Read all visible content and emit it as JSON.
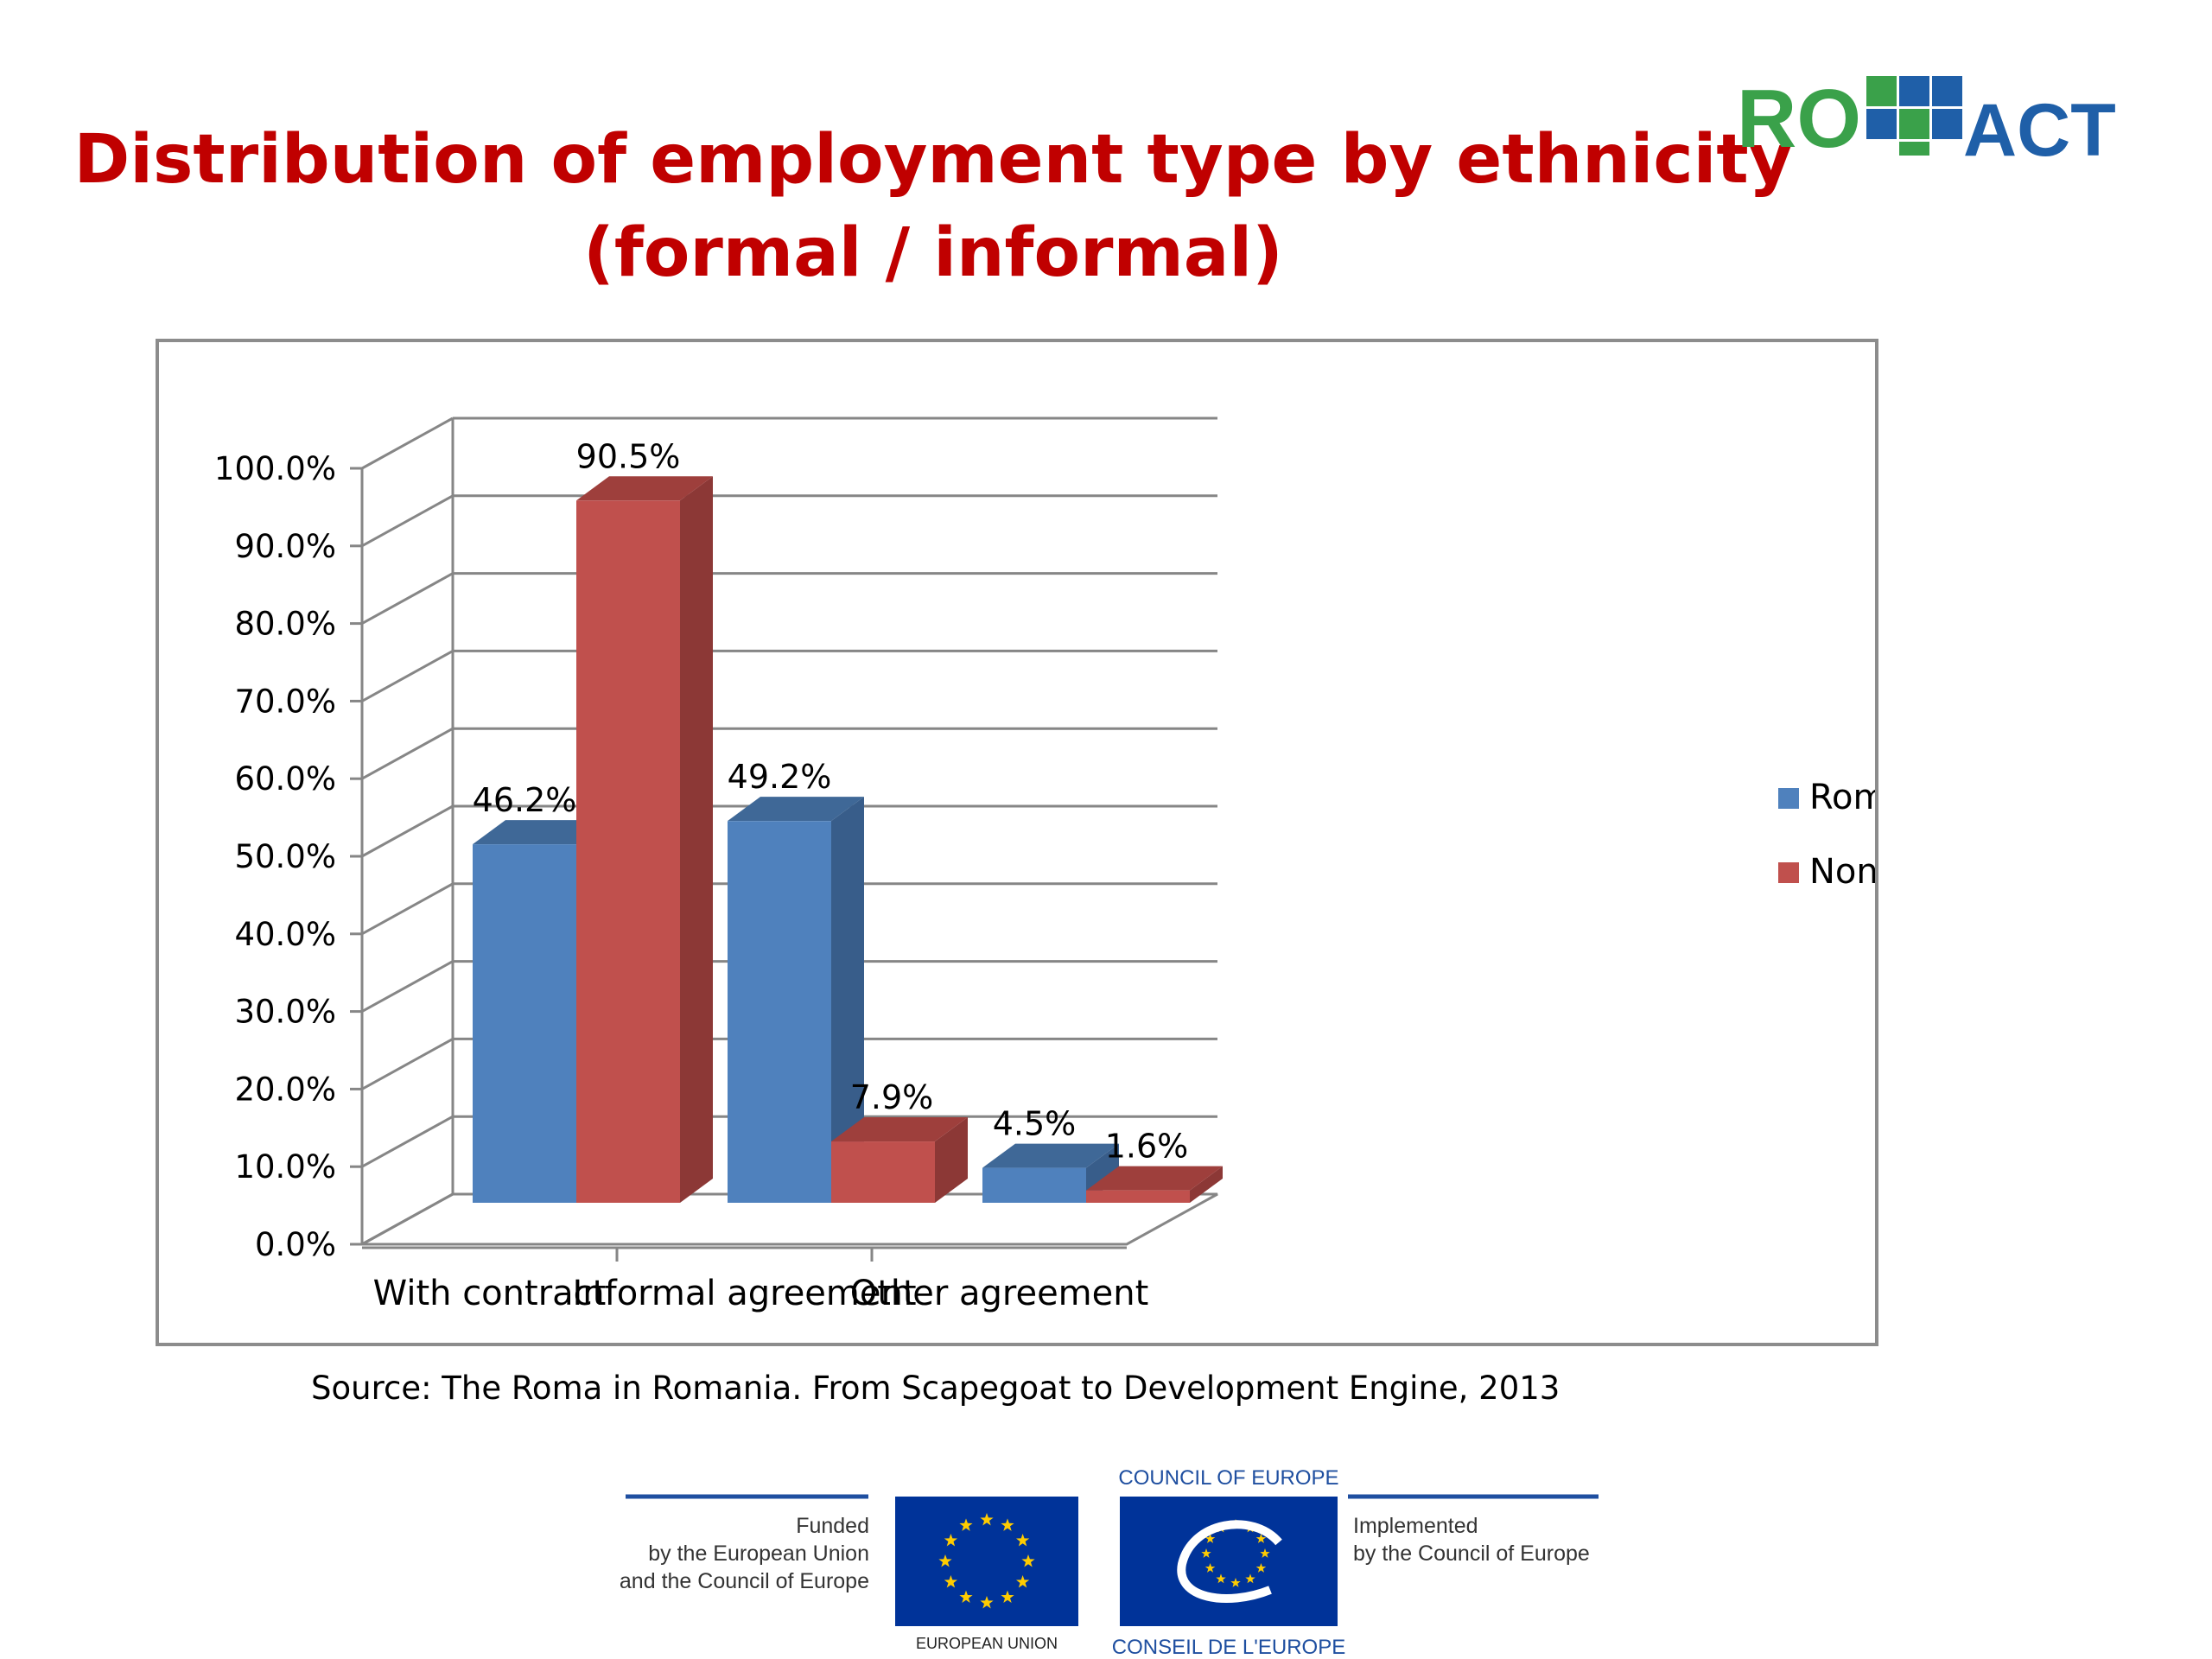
{
  "slide": {
    "title_line1": "Distribution of employment type by ethnicity",
    "title_line2": "(formal / informal)",
    "source": "Source: The Roma in Romania. From Scapegoat to Development Engine, 2013",
    "logo": {
      "text_left": "RO",
      "text_right": "ACT",
      "color_blue": "#1f5fa8",
      "color_green": "#3aa14a"
    }
  },
  "chart_data": {
    "type": "bar",
    "title": "",
    "xlabel": "",
    "ylabel": "",
    "categories": [
      "With contract",
      "Informal agreement",
      "Other agreement"
    ],
    "series": [
      {
        "name": "Roma",
        "values": [
          46.2,
          49.2,
          4.5
        ],
        "labels": [
          "46.2%",
          "49.2%",
          "4.5%"
        ],
        "color": "#4f81bd",
        "side_color": "#385d8a",
        "top_color": "#3f6897"
      },
      {
        "name": "Non-Roma",
        "values": [
          90.5,
          7.9,
          1.6
        ],
        "labels": [
          "90.5%",
          "7.9%",
          "1.6%"
        ],
        "color": "#c0504d",
        "side_color": "#8c3836",
        "top_color": "#9e3f3c"
      }
    ],
    "ylim": [
      0,
      100
    ],
    "yticks": [
      "0.0%",
      "10.0%",
      "20.0%",
      "30.0%",
      "40.0%",
      "50.0%",
      "60.0%",
      "70.0%",
      "80.0%",
      "90.0%",
      "100.0%"
    ],
    "grid": true,
    "legend_position": "right",
    "style": "3d-clustered"
  },
  "footer": {
    "funded_line1": "Funded",
    "funded_line2": "by the European Union",
    "funded_line3": "and the Council of Europe",
    "eu_caption": "EUROPEAN UNION",
    "coe_top": "COUNCIL OF EUROPE",
    "coe_bottom": "CONSEIL DE L'EUROPE",
    "impl_line1": "Implemented",
    "impl_line2": "by the Council of Europe",
    "eu_blue": "#003399",
    "star_color": "#ffcc00"
  }
}
